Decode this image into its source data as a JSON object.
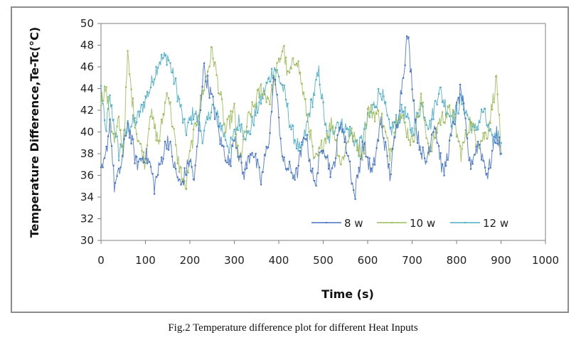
{
  "caption": "Fig.2 Temperature difference plot for different Heat Inputs",
  "chart_data": {
    "type": "line",
    "title": "",
    "xlabel": "Time (s)",
    "ylabel": "Temperature Difference,Te-Tc(°C)",
    "xlim": [
      0,
      1000
    ],
    "ylim": [
      30,
      50
    ],
    "xticks": [
      "0",
      "100",
      "200",
      "300",
      "400",
      "500",
      "600",
      "700",
      "800",
      "900",
      "1000"
    ],
    "yticks": [
      "30",
      "32",
      "34",
      "36",
      "38",
      "40",
      "42",
      "44",
      "46",
      "48",
      "50"
    ],
    "grid": false,
    "legend_position": "bottom-right-inside",
    "series": [
      {
        "name": "8 w",
        "color": "#4472C4",
        "x": [
          0,
          10,
          20,
          30,
          40,
          50,
          60,
          70,
          80,
          100,
          110,
          120,
          140,
          150,
          170,
          180,
          200,
          210,
          220,
          230,
          250,
          270,
          290,
          300,
          320,
          340,
          360,
          380,
          390,
          410,
          440,
          460,
          480,
          500,
          520,
          540,
          560,
          570,
          590,
          610,
          630,
          650,
          670,
          690,
          710,
          730,
          750,
          770,
          790,
          810,
          830,
          850,
          870,
          890,
          900
        ],
        "y": [
          36,
          37.5,
          41,
          35,
          36,
          38,
          41,
          39,
          37,
          38,
          37,
          35,
          38,
          39.5,
          36,
          35,
          37.5,
          35.5,
          40,
          46,
          43,
          39,
          37,
          40,
          36,
          38.5,
          35.5,
          40,
          45.5,
          37,
          36,
          40,
          35,
          39,
          36,
          41,
          37,
          34,
          39,
          36,
          41,
          36,
          42,
          49,
          40,
          37,
          41,
          36,
          40,
          44,
          37,
          39,
          36,
          40,
          38
        ]
      },
      {
        "name": "10 w",
        "color": "#9BBB59",
        "x": [
          0,
          10,
          30,
          40,
          50,
          60,
          70,
          80,
          100,
          110,
          130,
          150,
          170,
          190,
          200,
          220,
          250,
          270,
          280,
          300,
          310,
          330,
          360,
          380,
          410,
          420,
          440,
          470,
          480,
          500,
          520,
          540,
          560,
          590,
          600,
          630,
          650,
          670,
          700,
          720,
          740,
          760,
          790,
          810,
          830,
          850,
          870,
          890,
          900
        ],
        "y": [
          43,
          44,
          39,
          41,
          38,
          47,
          43,
          40,
          37,
          42,
          39,
          44,
          38,
          34.5,
          38,
          42,
          47.5,
          43,
          40,
          42,
          37,
          41,
          44,
          43,
          48,
          45,
          47,
          40,
          37,
          39,
          41,
          37,
          40,
          38,
          42,
          41.5,
          38,
          42,
          39,
          43,
          38,
          41,
          42,
          38,
          41,
          39,
          40,
          45,
          38
        ]
      },
      {
        "name": "12 w",
        "color": "#4BACC6",
        "x": [
          0,
          10,
          20,
          40,
          60,
          80,
          110,
          130,
          150,
          170,
          190,
          210,
          230,
          250,
          270,
          290,
          310,
          330,
          350,
          370,
          390,
          410,
          430,
          450,
          470,
          490,
          510,
          530,
          560,
          580,
          600,
          630,
          650,
          680,
          700,
          720,
          740,
          760,
          790,
          810,
          840,
          860,
          880,
          890,
          900
        ],
        "y": [
          44,
          40,
          43,
          38,
          40.5,
          41,
          44,
          46.5,
          47,
          44,
          40,
          42,
          39.5,
          42.5,
          40.5,
          38.5,
          41,
          39.5,
          42,
          44,
          46,
          44,
          40,
          38,
          42,
          45.5,
          39,
          41,
          40,
          38.5,
          41,
          44,
          40,
          42,
          40,
          42.5,
          40.5,
          44,
          41,
          43,
          40,
          42,
          39,
          40,
          39
        ]
      }
    ]
  }
}
